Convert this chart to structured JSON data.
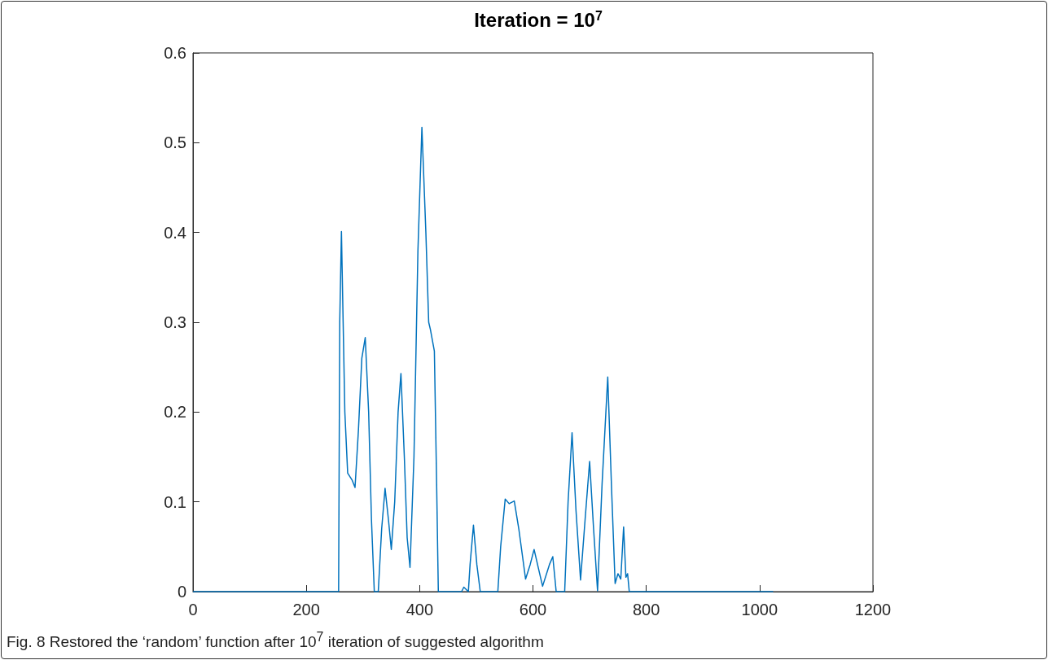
{
  "chart_data": {
    "type": "line",
    "title": "Iteration = 10$^{7}$",
    "annotations": [
      "Fig. 8 Restored the ‘random’ function after 10$^{7}$ iteration of suggested algorithm"
    ],
    "x": [
      0,
      257,
      259,
      262,
      265,
      268,
      273,
      281,
      286,
      292,
      298,
      304,
      310,
      315,
      320,
      327,
      333,
      339,
      345,
      350,
      356,
      362,
      367,
      373,
      378,
      383,
      390,
      397,
      404,
      411,
      416,
      419,
      426,
      430,
      433,
      474,
      478,
      486,
      489,
      495,
      501,
      507,
      538,
      543,
      551,
      558,
      567,
      575,
      587,
      595,
      602,
      610,
      617,
      629,
      635,
      641,
      656,
      662,
      669,
      676,
      684,
      692,
      700,
      707,
      714,
      722,
      732,
      739,
      745,
      750,
      755,
      760,
      764,
      767,
      770,
      1024
    ],
    "series": [
      {
        "color": "#0072bd",
        "values": [
          0,
          0,
          0.3,
          0.401,
          0.3,
          0.2,
          0.132,
          0.124,
          0.116,
          0.18,
          0.26,
          0.283,
          0.2,
          0.08,
          0,
          0,
          0.07,
          0.115,
          0.08,
          0.047,
          0.1,
          0.2,
          0.243,
          0.15,
          0.06,
          0.027,
          0.15,
          0.38,
          0.517,
          0.4,
          0.3,
          0.292,
          0.268,
          0.12,
          0,
          0,
          0.005,
          0,
          0.03,
          0.074,
          0.03,
          0,
          0,
          0.05,
          0.103,
          0.098,
          0.101,
          0.07,
          0.014,
          0.03,
          0.047,
          0.025,
          0.006,
          0.03,
          0.039,
          0,
          0,
          0.1,
          0.177,
          0.09,
          0.013,
          0.08,
          0.145,
          0.07,
          0.001,
          0.12,
          0.239,
          0.11,
          0.009,
          0.02,
          0.014,
          0.072,
          0.016,
          0.02,
          0,
          0
        ]
      }
    ],
    "xlim": [
      0,
      1200
    ],
    "xticks": [
      0,
      200,
      400,
      600,
      800,
      1000,
      1200
    ],
    "ylim": [
      0,
      0.6
    ],
    "yticks": [
      0,
      0.1,
      0.2,
      0.3,
      0.4,
      0.5,
      0.6
    ],
    "grid": false,
    "marker": "none",
    "line_style": "solid"
  }
}
